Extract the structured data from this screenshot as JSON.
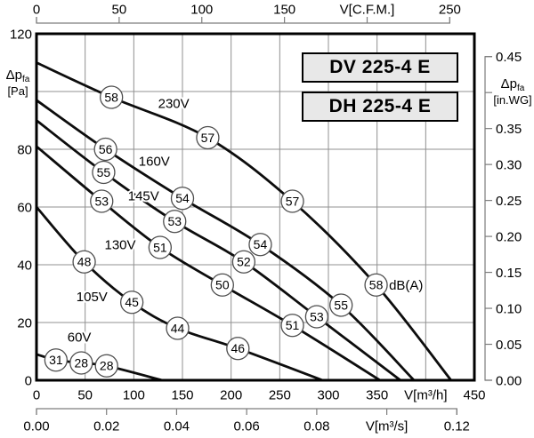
{
  "background": "#ffffff",
  "colors": {
    "curve": "#0d0d0d",
    "grid": "#909090",
    "plot_border": "#000000",
    "bracket": "#7d7d7d",
    "badge_fill": "#ffffff",
    "badge_stroke": "#4d4d4d",
    "box_fill": "#e8e8e8",
    "text": "#000000"
  },
  "title_boxes": [
    {
      "label": "DV 225-4 E"
    },
    {
      "label": "DH 225-4 E"
    }
  ],
  "axis_labels": {
    "left_main": "Δp",
    "left_sub": "fa",
    "left_unit": "[Pa]",
    "right_main": "Δp",
    "right_sub": "fa",
    "right_unit": "[in.WG]"
  },
  "chart_data": {
    "type": "line",
    "title": "DV 225-4 E / DH 225-4 E fan curves",
    "xlabel": "V[m³/h]",
    "ylabel": "Δp fa [Pa]",
    "x_axis": {
      "min": 0,
      "max": 450,
      "grid_step": 50,
      "ticks": [
        {
          "v": 0,
          "t": "0"
        },
        {
          "v": 50,
          "t": "50"
        },
        {
          "v": 100,
          "t": "100"
        },
        {
          "v": 150,
          "t": "150"
        },
        {
          "v": 200,
          "t": "200"
        },
        {
          "v": 250,
          "t": "250"
        },
        {
          "v": 300,
          "t": "300"
        },
        {
          "v": 350,
          "t": "350"
        },
        {
          "v": 400,
          "t": "V[m³/h]"
        },
        {
          "v": 450,
          "t": "450"
        }
      ]
    },
    "y_axis": {
      "min": 0,
      "max": 120,
      "grid_step": 20,
      "ticks": [
        {
          "v": 0,
          "t": "0"
        },
        {
          "v": 20,
          "t": "20"
        },
        {
          "v": 40,
          "t": "40"
        },
        {
          "v": 60,
          "t": "60"
        },
        {
          "v": 80,
          "t": "80"
        },
        {
          "v": 100,
          "t": ""
        },
        {
          "v": 120,
          "t": "120"
        }
      ]
    },
    "top_axis": {
      "unit": "C.F.M.",
      "m3h_per_unit": 1.699,
      "ticks": [
        {
          "v": 0,
          "t": "0"
        },
        {
          "v": 50,
          "t": "50"
        },
        {
          "v": 100,
          "t": "100"
        },
        {
          "v": 150,
          "t": "150"
        },
        {
          "v": 200,
          "t": "V[C.F.M.]"
        },
        {
          "v": 250,
          "t": "250"
        }
      ]
    },
    "right_axis": {
      "unit": "in.WG",
      "pa_per_unit": 249.089,
      "ticks": [
        {
          "v": 0.45,
          "t": "0.45"
        },
        {
          "v": 0.4,
          "t": ""
        },
        {
          "v": 0.35,
          "t": "0.35"
        },
        {
          "v": 0.3,
          "t": "0.30"
        },
        {
          "v": 0.25,
          "t": "0.25"
        },
        {
          "v": 0.2,
          "t": "0.20"
        },
        {
          "v": 0.15,
          "t": "0.15"
        },
        {
          "v": 0.1,
          "t": "0.10"
        },
        {
          "v": 0.05,
          "t": "0.05"
        },
        {
          "v": 0.0,
          "t": "0.00"
        }
      ]
    },
    "bottom2_axis": {
      "unit": "m³/s",
      "m3h_per_unit": 3600,
      "ticks": [
        {
          "v": 0.0,
          "t": "0.00"
        },
        {
          "v": 0.02,
          "t": "0.02"
        },
        {
          "v": 0.04,
          "t": "0.04"
        },
        {
          "v": 0.06,
          "t": "0.06"
        },
        {
          "v": 0.08,
          "t": "0.08"
        },
        {
          "v": 0.1,
          "t": "V[m³/s]"
        },
        {
          "v": 0.12,
          "t": "0.12"
        }
      ]
    },
    "series": [
      {
        "name": "230V",
        "label_at": [
          141,
          96
        ],
        "points": [
          [
            0,
            110
          ],
          [
            77,
            98
          ],
          [
            176,
            84
          ],
          [
            263,
            62
          ],
          [
            349,
            33
          ],
          [
            426,
            0
          ]
        ],
        "badges": [
          {
            "at": [
              77,
              98
            ],
            "db": "58"
          },
          {
            "at": [
              176,
              84
            ],
            "db": "57"
          },
          {
            "at": [
              263,
              62
            ],
            "db": "57"
          },
          {
            "at": [
              349,
              33
            ],
            "db": "58",
            "suffix": "dB(A)"
          }
        ]
      },
      {
        "name": "160V",
        "label_at": [
          121,
          76
        ],
        "points": [
          [
            0,
            97
          ],
          [
            71,
            80
          ],
          [
            150,
            63
          ],
          [
            230,
            47
          ],
          [
            313,
            26
          ],
          [
            388,
            0
          ]
        ],
        "badges": [
          {
            "at": [
              71,
              80
            ],
            "db": "56"
          },
          {
            "at": [
              150,
              63
            ],
            "db": "54"
          },
          {
            "at": [
              230,
              47
            ],
            "db": "54"
          },
          {
            "at": [
              313,
              26
            ],
            "db": "55"
          }
        ]
      },
      {
        "name": "145V",
        "label_at": [
          110,
          64
        ],
        "points": [
          [
            0,
            90
          ],
          [
            69,
            72
          ],
          [
            142,
            55
          ],
          [
            213,
            41
          ],
          [
            288,
            22
          ],
          [
            374,
            0
          ]
        ],
        "badges": [
          {
            "at": [
              69,
              72
            ],
            "db": "55"
          },
          {
            "at": [
              142,
              55
            ],
            "db": "53"
          },
          {
            "at": [
              213,
              41
            ],
            "db": "52"
          },
          {
            "at": [
              288,
              22
            ],
            "db": "53"
          }
        ]
      },
      {
        "name": "130V",
        "label_at": [
          86,
          47
        ],
        "points": [
          [
            0,
            81
          ],
          [
            67,
            62
          ],
          [
            127,
            46
          ],
          [
            191,
            33
          ],
          [
            263,
            19
          ],
          [
            353,
            0
          ]
        ],
        "badges": [
          {
            "at": [
              67,
              62
            ],
            "db": "53"
          },
          {
            "at": [
              127,
              46
            ],
            "db": "51"
          },
          {
            "at": [
              191,
              33
            ],
            "db": "50"
          },
          {
            "at": [
              263,
              19
            ],
            "db": "51"
          }
        ]
      },
      {
        "name": "105V",
        "label_at": [
          57,
          29
        ],
        "points": [
          [
            0,
            60
          ],
          [
            49,
            41
          ],
          [
            98,
            27
          ],
          [
            145,
            18
          ],
          [
            207,
            11
          ],
          [
            294,
            0
          ]
        ],
        "badges": [
          {
            "at": [
              49,
              41
            ],
            "db": "48"
          },
          {
            "at": [
              98,
              27
            ],
            "db": "45"
          },
          {
            "at": [
              145,
              18
            ],
            "db": "44"
          },
          {
            "at": [
              207,
              11
            ],
            "db": "46"
          }
        ]
      },
      {
        "name": "60V",
        "label_at": [
          44,
          15
        ],
        "points": [
          [
            0,
            9
          ],
          [
            20,
            7
          ],
          [
            46,
            6
          ],
          [
            72,
            5
          ],
          [
            129,
            0
          ]
        ],
        "badges": [
          {
            "at": [
              20,
              7
            ],
            "db": "31"
          },
          {
            "at": [
              46,
              6
            ],
            "db": "28"
          },
          {
            "at": [
              72,
              5
            ],
            "db": "28"
          }
        ]
      }
    ]
  }
}
